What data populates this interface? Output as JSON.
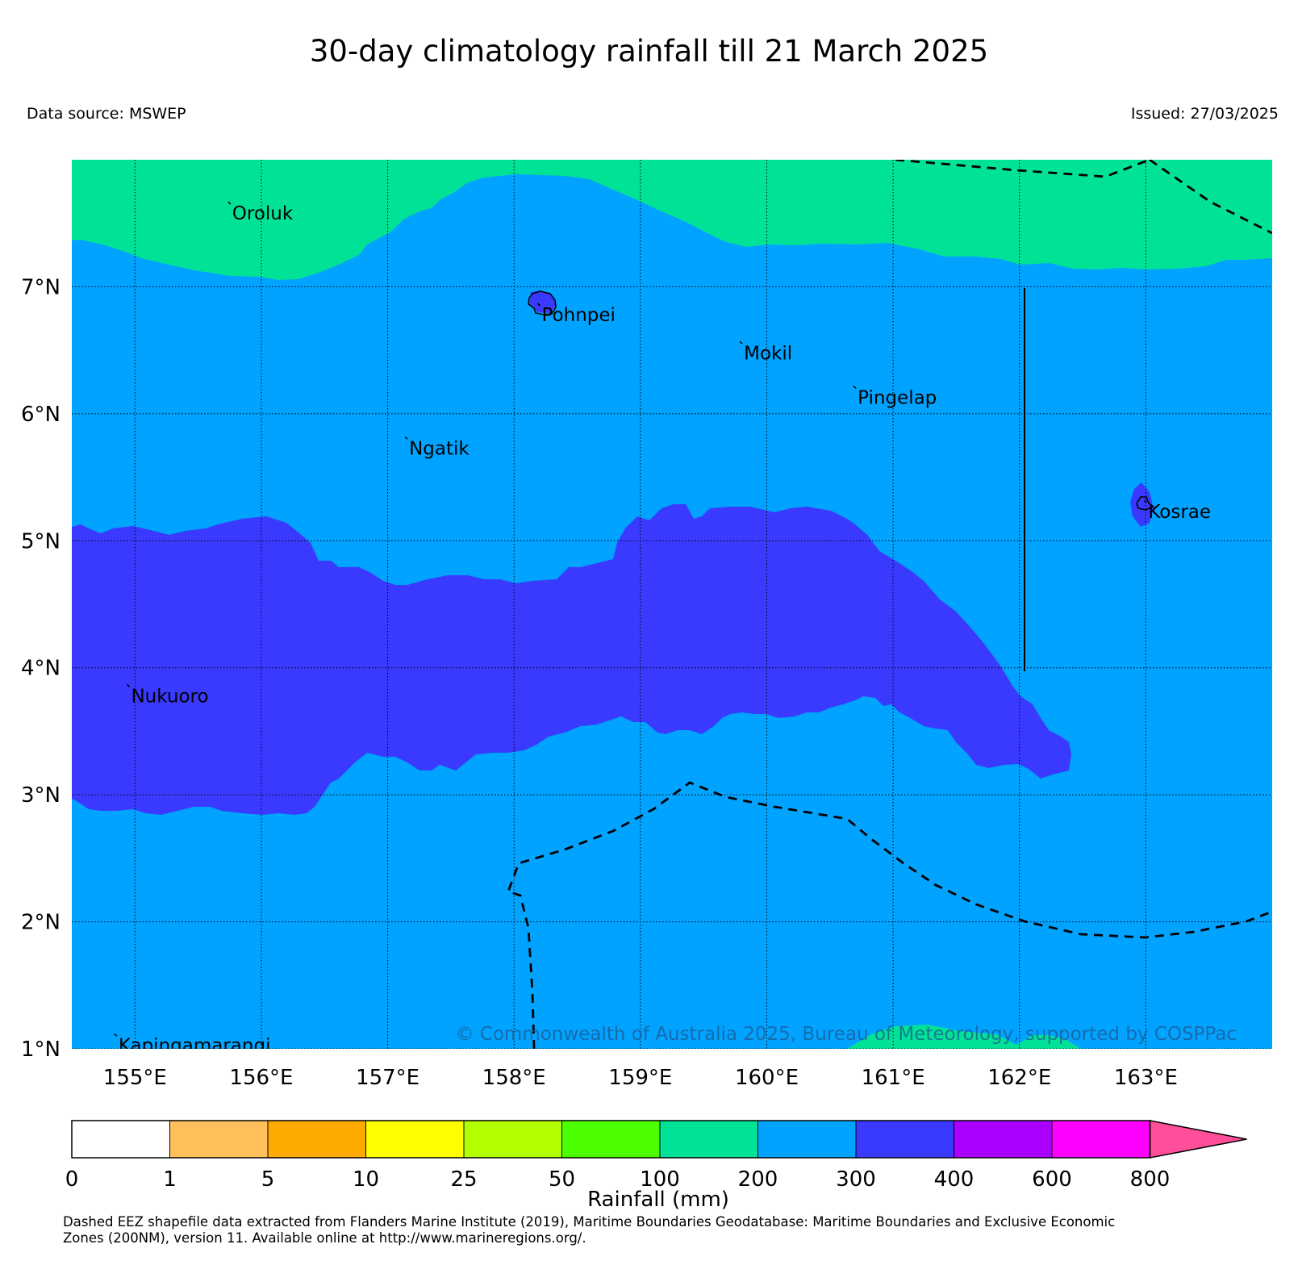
{
  "title": "30-day climatology rainfall till 21 March 2025",
  "data_source": "Data source: MSWEP",
  "issued": "Issued: 27/03/2025",
  "copyright": "© Commonwealth of Australia 2025, Bureau of Meteorology, supported by COSPPac",
  "map": {
    "lon_range": [
      154.5,
      164.0
    ],
    "lat_range": [
      1.0,
      8.0
    ],
    "x_ticks": [
      "155°E",
      "156°E",
      "157°E",
      "158°E",
      "159°E",
      "160°E",
      "161°E",
      "162°E",
      "163°E"
    ],
    "y_ticks": [
      "7°N",
      "6°N",
      "5°N",
      "4°N",
      "3°N",
      "2°N",
      "1°N"
    ],
    "grid": true,
    "places": [
      {
        "name": "Oroluk",
        "lon": 155.75,
        "lat": 7.65
      },
      {
        "name": "Pohnpei",
        "lon": 158.2,
        "lat": 6.85
      },
      {
        "name": "Mokil",
        "lon": 159.8,
        "lat": 6.55
      },
      {
        "name": "Pingelap",
        "lon": 160.7,
        "lat": 6.2
      },
      {
        "name": "Ngatik",
        "lon": 157.15,
        "lat": 5.8
      },
      {
        "name": "Kosrae",
        "lon": 163.0,
        "lat": 5.3
      },
      {
        "name": "Nukuoro",
        "lon": 154.95,
        "lat": 3.85
      },
      {
        "name": "Kapingamarangi",
        "lon": 154.85,
        "lat": 1.1
      }
    ],
    "rainfall_regions": [
      {
        "band": "100-200",
        "color": "#00e396"
      },
      {
        "band": "200-300",
        "color": "#00a3ff"
      },
      {
        "band": "300-400",
        "color": "#3a3aff"
      }
    ]
  },
  "colorbar": {
    "label": "Rainfall (mm)",
    "ticks": [
      "0",
      "1",
      "5",
      "10",
      "25",
      "50",
      "100",
      "200",
      "300",
      "400",
      "600",
      "800"
    ],
    "colors": [
      "#ffffff",
      "#ffbf5a",
      "#ffaa00",
      "#ffff00",
      "#b2ff00",
      "#4cff00",
      "#00e396",
      "#00a3ff",
      "#3a3aff",
      "#aa00ff",
      "#ff00ff",
      "#ff4f9a"
    ]
  },
  "footnote": {
    "line1": "Dashed EEZ shapefile data extracted from Flanders Marine Institute (2019), Maritime Boundaries Geodatabase: Maritime Boundaries and Exclusive Economic",
    "line2": "Zones (200NM), version 11. Available online at http://www.marineregions.org/."
  }
}
